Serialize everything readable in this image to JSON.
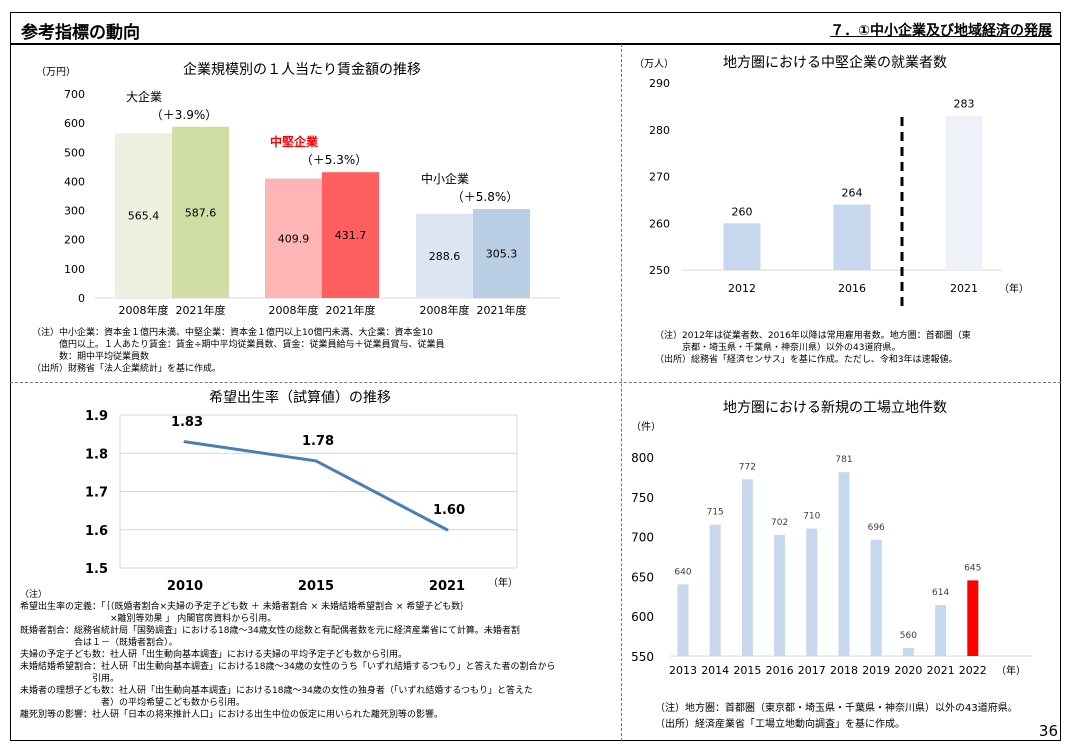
{
  "header": {
    "title": "参考指標の動向",
    "section": "７．①中小企業及び地域経済の発展"
  },
  "page_number": "36",
  "colors": {
    "hline": "#777777",
    "wage_axis": "#d9d9d9",
    "emp_axis": "#d9d9d9",
    "highlight_red": "#ff0000",
    "line_blue": "#4a7ebb",
    "bar_blue": "#c6d7ee"
  },
  "wage": {
    "ylabel": "（万円）",
    "notes": [
      "（注）中小企業：資本金１億円未満、中堅企業：資本金１億円以上10億円未満、大企業：資本金10",
      "　　　億円以上。１人あたり賃金：賃金÷期中平均従業員数、賃金：従業員給与＋従業員賞与、従業員",
      "　　　数：期中平均従業員数",
      "（出所）財務省「法人企業統計」を基に作成。"
    ]
  },
  "employment": {
    "ylabel": "（万人）",
    "xunit": "（年）",
    "notes": [
      "（注）2012年は従業者数、2016年以降は常用雇用者数。地方圏：首都圏（東",
      "　　　京都・埼玉県・千葉県・神奈川県）以外の43道府県。",
      "（出所）総務省「経済センサス」を基に作成。ただし、令和3年は速報値。"
    ]
  },
  "fertility": {
    "xunit": "（年）",
    "notes": [
      "（注）",
      "希望出生率の定義：「｛（既婚者割合×夫婦の予定子ども数 ＋ 未婚者割合 × 未婚結婚希望割合 × 希望子ども数｝",
      "　　　　　　　　　　×離別等効果 」 内閣官房資料から引用。",
      "既婚者割合：総務省統計局「国勢調査」における18歳～34歳女性の総数と有配偶者数を元に経済産業省にて計算。未婚者割",
      "　　　　　　合は１－（既婚者割合）。",
      "夫婦の予定子ども数：社人研「出生動向基本調査」における夫婦の平均予定子ども数から引用。",
      "未婚結婚希望割合：社人研「出生動向基本調査」における18歳～34歳の女性のうち「いずれ結婚するつもり」と答えた者の割合から",
      "　　　　　　　　引用。",
      "未婚者の理想子ども数：社人研「出生動向基本調査」における18歳～34歳の女性の独身者（「いずれ結婚するつもり」と答えた",
      "　　　　　　　　　者）の平均希望こども数から引用。",
      "離死別等の影響：社人研「日本の将来推計人口」における出生中位の仮定に用いられた離死別等の影響。"
    ]
  },
  "factory": {
    "ylabel": "（件）",
    "xunit": "（年）",
    "notes": [
      "（注）地方圏：首都圏（東京都・埼玉県・千葉県・神奈川県）以外の43道府県。",
      "（出所）経済産業省「工場立地動向調査」を基に作成。"
    ]
  },
  "chart_data": [
    {
      "id": "wage",
      "type": "bar",
      "title": "企業規模別の１人当たり賃金額の推移",
      "ylabel": "（万円）",
      "ylim": [
        0,
        700
      ],
      "yticks": [
        0,
        100,
        200,
        300,
        400,
        500,
        600,
        700
      ],
      "groups": [
        {
          "name": "大企業",
          "growth": "（＋3.9%）",
          "bars": [
            {
              "label": "2008年度",
              "value": 565.4,
              "color": "#ebf1de"
            },
            {
              "label": "2021年度",
              "value": 587.6,
              "color": "#d0dea4"
            }
          ]
        },
        {
          "name": "中堅企業",
          "growth": "（＋5.3%）",
          "highlight": true,
          "bars": [
            {
              "label": "2008年度",
              "value": 409.9,
              "color": "#ffb5b5"
            },
            {
              "label": "2021年度",
              "value": 431.7,
              "color": "#ff5f5f"
            }
          ]
        },
        {
          "name": "中小企業",
          "growth": "（＋5.8%）",
          "bars": [
            {
              "label": "2008年度",
              "value": 288.6,
              "color": "#dce6f2"
            },
            {
              "label": "2021年度",
              "value": 305.3,
              "color": "#b9cde5"
            }
          ]
        }
      ],
      "grid": false
    },
    {
      "id": "employment",
      "type": "bar",
      "title": "地方圏における中堅企業の就業者数",
      "ylabel": "（万人）",
      "ylim": [
        250,
        290
      ],
      "yticks": [
        250,
        260,
        270,
        280,
        290
      ],
      "categories": [
        "2012",
        "2016",
        "2021"
      ],
      "values": [
        260,
        264,
        283
      ],
      "colors": [
        "#c6d7ee",
        "#c6d7ee",
        "#eef2f8"
      ],
      "xunit": "（年）",
      "divider_between": [
        "2016",
        "2021"
      ],
      "grid": false
    },
    {
      "id": "fertility",
      "type": "line",
      "title": "希望出生率（試算値）の推移",
      "x": [
        "2010",
        "2015",
        "2021"
      ],
      "values": [
        1.83,
        1.78,
        1.6
      ],
      "value_labels": [
        "1.83",
        "1.78",
        "1.60"
      ],
      "ylim": [
        1.5,
        1.9
      ],
      "yticks": [
        "1.5",
        "1.6",
        "1.7",
        "1.8",
        "1.9"
      ],
      "xunit": "（年）",
      "grid": true
    },
    {
      "id": "factory",
      "type": "bar",
      "title": "地方圏における新規の工場立地件数",
      "ylabel": "（件）",
      "ylim": [
        550,
        800
      ],
      "yticks": [
        550,
        600,
        650,
        700,
        750,
        800
      ],
      "categories": [
        "2013",
        "2014",
        "2015",
        "2016",
        "2017",
        "2018",
        "2019",
        "2020",
        "2021",
        "2022"
      ],
      "values": [
        640,
        715,
        772,
        702,
        710,
        781,
        696,
        560,
        614,
        645
      ],
      "highlight_index": 9,
      "xunit": "（年）",
      "grid": false
    }
  ]
}
